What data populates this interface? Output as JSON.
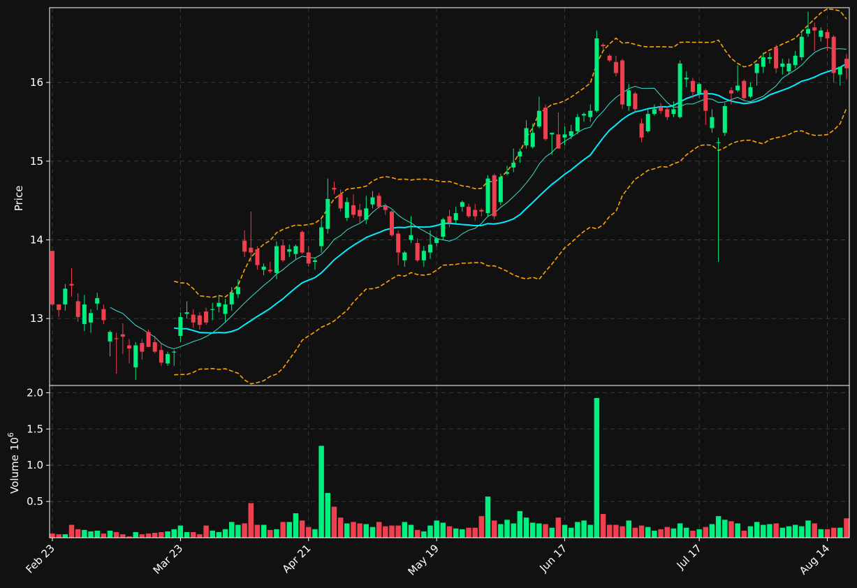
{
  "chart_data": {
    "type": "candlestick",
    "colors": {
      "background": "#111111",
      "up": "#00f080",
      "down": "#f04050",
      "grid": "#3a3a3a",
      "bollinger": "#ffa500",
      "ma_fast": "#40e0d0",
      "ma_slow": "#00eeff",
      "frame": "#ffffff"
    },
    "price_panel": {
      "ylabel": "Price",
      "yticks": [
        13,
        14,
        15,
        16
      ],
      "ylim": [
        12.15,
        16.95
      ]
    },
    "volume_panel": {
      "ylabel": "Volume",
      "ylabel_exponent": "10",
      "ylabel_power": "6",
      "yticks": [
        "0.5",
        "1.0",
        "1.5",
        "2.0"
      ],
      "ytick_values": [
        0.5,
        1.0,
        1.5,
        2.0
      ],
      "ylim": [
        0,
        2.1
      ]
    },
    "x_ticks": [
      {
        "label": "Feb 23",
        "index": 0
      },
      {
        "label": "Mar 23",
        "index": 20
      },
      {
        "label": "Apr 21",
        "index": 40
      },
      {
        "label": "May 19",
        "index": 60
      },
      {
        "label": "Jun 17",
        "index": 80
      },
      {
        "label": "Jul 17",
        "index": 101
      },
      {
        "label": "Aug 14",
        "index": 121
      }
    ],
    "candles": [
      [
        13.86,
        13.86,
        13.16,
        13.18,
        0.06
      ],
      [
        13.18,
        13.18,
        13.02,
        13.11,
        0.05
      ],
      [
        13.18,
        13.44,
        13.1,
        13.38,
        0.05
      ],
      [
        13.44,
        13.64,
        13.28,
        13.42,
        0.18
      ],
      [
        13.22,
        13.32,
        12.96,
        13.02,
        0.12
      ],
      [
        12.93,
        13.3,
        12.84,
        13.18,
        0.11
      ],
      [
        12.95,
        13.12,
        12.82,
        13.07,
        0.09
      ],
      [
        13.19,
        13.33,
        13.11,
        13.26,
        0.1
      ],
      [
        13.12,
        13.18,
        12.93,
        12.98,
        0.06
      ],
      [
        12.71,
        12.85,
        12.52,
        12.83,
        0.1
      ],
      [
        12.75,
        12.82,
        12.3,
        12.74,
        0.08
      ],
      [
        12.8,
        12.94,
        12.55,
        12.77,
        0.05
      ],
      [
        12.66,
        12.74,
        12.43,
        12.62,
        0.02
      ],
      [
        12.38,
        12.7,
        12.22,
        12.66,
        0.08
      ],
      [
        12.69,
        12.74,
        12.48,
        12.58,
        0.05
      ],
      [
        12.83,
        12.86,
        12.65,
        12.64,
        0.06
      ],
      [
        12.7,
        12.78,
        12.56,
        12.58,
        0.07
      ],
      [
        12.6,
        12.68,
        12.4,
        12.44,
        0.08
      ],
      [
        12.43,
        12.58,
        12.4,
        12.55,
        0.09
      ],
      [
        12.57,
        12.6,
        12.4,
        12.58,
        0.12
      ],
      [
        12.78,
        13.08,
        12.7,
        13.02,
        0.17
      ],
      [
        13.06,
        13.22,
        13.0,
        13.08,
        0.08
      ],
      [
        13.05,
        13.12,
        12.88,
        12.95,
        0.08
      ],
      [
        13.04,
        13.08,
        12.86,
        12.92,
        0.05
      ],
      [
        13.09,
        13.14,
        12.92,
        12.95,
        0.17
      ],
      [
        13.12,
        13.2,
        12.98,
        13.12,
        0.1
      ],
      [
        13.15,
        13.3,
        13.08,
        13.2,
        0.08
      ],
      [
        13.06,
        13.25,
        12.96,
        13.18,
        0.12
      ],
      [
        13.18,
        13.4,
        13.1,
        13.33,
        0.22
      ],
      [
        13.31,
        13.5,
        13.26,
        13.4,
        0.18
      ],
      [
        13.99,
        14.12,
        13.78,
        13.85,
        0.2
      ],
      [
        13.9,
        14.36,
        13.72,
        13.84,
        0.48
      ],
      [
        13.88,
        13.92,
        13.62,
        13.68,
        0.18
      ],
      [
        13.62,
        13.7,
        13.55,
        13.66,
        0.18
      ],
      [
        13.62,
        13.72,
        13.58,
        13.6,
        0.11
      ],
      [
        13.58,
        13.98,
        13.5,
        13.92,
        0.12
      ],
      [
        13.93,
        14.0,
        13.72,
        13.74,
        0.22
      ],
      [
        13.85,
        13.94,
        13.78,
        13.88,
        0.22
      ],
      [
        13.82,
        13.94,
        13.75,
        13.92,
        0.34
      ],
      [
        14.1,
        14.12,
        13.82,
        13.84,
        0.24
      ],
      [
        13.84,
        13.92,
        13.66,
        13.7,
        0.15
      ],
      [
        13.72,
        13.78,
        13.62,
        13.74,
        0.12
      ],
      [
        13.92,
        14.26,
        13.84,
        14.16,
        1.27
      ],
      [
        14.14,
        14.78,
        14.08,
        14.52,
        0.62
      ],
      [
        14.66,
        14.74,
        14.58,
        14.64,
        0.43
      ],
      [
        14.58,
        14.64,
        14.36,
        14.4,
        0.28
      ],
      [
        14.28,
        14.54,
        14.24,
        14.48,
        0.2
      ],
      [
        14.44,
        14.58,
        14.28,
        14.32,
        0.22
      ],
      [
        14.38,
        14.46,
        14.22,
        14.3,
        0.2
      ],
      [
        14.26,
        14.56,
        14.2,
        14.4,
        0.19
      ],
      [
        14.45,
        14.62,
        14.4,
        14.54,
        0.15
      ],
      [
        14.56,
        14.6,
        14.4,
        14.42,
        0.22
      ],
      [
        14.43,
        14.46,
        14.32,
        14.38,
        0.16
      ],
      [
        14.36,
        14.38,
        14.04,
        14.06,
        0.17
      ],
      [
        14.08,
        14.12,
        13.68,
        13.84,
        0.17
      ],
      [
        13.74,
        13.86,
        13.66,
        13.84,
        0.22
      ],
      [
        14.0,
        14.3,
        13.96,
        14.06,
        0.18
      ],
      [
        13.96,
        14.02,
        13.72,
        13.74,
        0.11
      ],
      [
        13.74,
        13.92,
        13.66,
        13.86,
        0.09
      ],
      [
        13.84,
        14.12,
        13.76,
        13.94,
        0.17
      ],
      [
        13.96,
        14.04,
        13.92,
        14.02,
        0.24
      ],
      [
        14.04,
        14.28,
        14.0,
        14.26,
        0.21
      ],
      [
        14.3,
        14.38,
        14.16,
        14.22,
        0.16
      ],
      [
        14.25,
        14.42,
        14.2,
        14.34,
        0.13
      ],
      [
        14.42,
        14.5,
        14.36,
        14.48,
        0.12
      ],
      [
        14.42,
        14.46,
        14.28,
        14.3,
        0.14
      ],
      [
        14.38,
        14.46,
        14.24,
        14.3,
        0.14
      ],
      [
        14.38,
        14.4,
        14.3,
        14.36,
        0.3
      ],
      [
        14.34,
        14.82,
        14.3,
        14.78,
        0.57
      ],
      [
        14.82,
        14.84,
        14.26,
        14.3,
        0.24
      ],
      [
        14.48,
        14.84,
        14.44,
        14.8,
        0.19
      ],
      [
        14.84,
        14.94,
        14.82,
        14.86,
        0.25
      ],
      [
        14.92,
        15.16,
        14.86,
        14.98,
        0.2
      ],
      [
        15.06,
        15.16,
        14.98,
        15.12,
        0.37
      ],
      [
        15.2,
        15.52,
        15.16,
        15.42,
        0.28
      ],
      [
        15.18,
        15.48,
        15.16,
        15.36,
        0.21
      ],
      [
        15.44,
        15.82,
        15.42,
        15.64,
        0.2
      ],
      [
        15.68,
        15.72,
        15.26,
        15.28,
        0.19
      ],
      [
        15.34,
        15.36,
        15.08,
        15.36,
        0.14
      ],
      [
        15.34,
        15.62,
        15.18,
        15.16,
        0.28
      ],
      [
        15.3,
        15.44,
        15.2,
        15.34,
        0.18
      ],
      [
        15.32,
        15.46,
        15.28,
        15.38,
        0.14
      ],
      [
        15.38,
        15.6,
        15.34,
        15.56,
        0.22
      ],
      [
        15.58,
        15.62,
        15.5,
        15.6,
        0.24
      ],
      [
        15.56,
        15.72,
        15.5,
        15.64,
        0.18
      ],
      [
        15.64,
        16.66,
        15.62,
        16.56,
        1.93
      ],
      [
        16.48,
        16.5,
        16.42,
        16.46,
        0.33
      ],
      [
        16.34,
        16.36,
        16.26,
        16.28,
        0.18
      ],
      [
        16.26,
        16.34,
        16.08,
        16.12,
        0.18
      ],
      [
        16.28,
        16.3,
        15.66,
        15.72,
        0.16
      ],
      [
        15.7,
        15.98,
        15.64,
        15.9,
        0.24
      ],
      [
        15.86,
        15.88,
        15.62,
        15.66,
        0.14
      ],
      [
        15.48,
        15.54,
        15.24,
        15.3,
        0.17
      ],
      [
        15.38,
        15.66,
        15.36,
        15.6,
        0.15
      ],
      [
        15.6,
        15.72,
        15.58,
        15.66,
        0.1
      ],
      [
        15.68,
        15.74,
        15.6,
        15.64,
        0.12
      ],
      [
        15.66,
        15.7,
        15.52,
        15.56,
        0.15
      ],
      [
        15.6,
        15.76,
        15.56,
        15.66,
        0.13
      ],
      [
        15.56,
        16.28,
        15.54,
        16.24,
        0.2
      ],
      [
        16.04,
        16.14,
        15.94,
        16.06,
        0.14
      ],
      [
        16.02,
        16.06,
        15.8,
        15.88,
        0.1
      ],
      [
        15.86,
        16.0,
        15.8,
        15.98,
        0.12
      ],
      [
        15.9,
        15.92,
        15.46,
        15.64,
        0.15
      ],
      [
        15.42,
        15.66,
        15.36,
        15.56,
        0.19
      ],
      [
        15.24,
        15.3,
        13.72,
        15.24,
        0.3
      ],
      [
        15.36,
        15.74,
        15.32,
        15.7,
        0.25
      ],
      [
        15.9,
        15.94,
        15.72,
        15.86,
        0.23
      ],
      [
        15.9,
        16.22,
        15.88,
        15.96,
        0.2
      ],
      [
        16.02,
        16.04,
        15.76,
        15.8,
        0.1
      ],
      [
        15.82,
        16.0,
        15.8,
        15.94,
        0.16
      ],
      [
        16.12,
        16.22,
        15.96,
        16.24,
        0.22
      ],
      [
        16.2,
        16.38,
        16.12,
        16.32,
        0.18
      ],
      [
        16.3,
        16.38,
        16.24,
        16.32,
        0.19
      ],
      [
        16.44,
        16.48,
        16.12,
        16.18,
        0.2
      ],
      [
        16.2,
        16.3,
        16.1,
        16.24,
        0.14
      ],
      [
        16.14,
        16.3,
        16.1,
        16.24,
        0.16
      ],
      [
        16.22,
        16.4,
        16.18,
        16.34,
        0.18
      ],
      [
        16.32,
        16.66,
        16.28,
        16.58,
        0.16
      ],
      [
        16.62,
        16.9,
        16.58,
        16.68,
        0.24
      ],
      [
        16.7,
        16.76,
        16.4,
        16.66,
        0.2
      ],
      [
        16.58,
        16.7,
        16.52,
        16.66,
        0.12
      ],
      [
        16.64,
        16.68,
        16.4,
        16.56,
        0.12
      ],
      [
        16.58,
        16.6,
        16.0,
        16.12,
        0.14
      ],
      [
        16.1,
        16.16,
        15.96,
        16.2,
        0.14
      ],
      [
        16.3,
        16.36,
        16.04,
        16.18,
        0.27
      ]
    ]
  }
}
